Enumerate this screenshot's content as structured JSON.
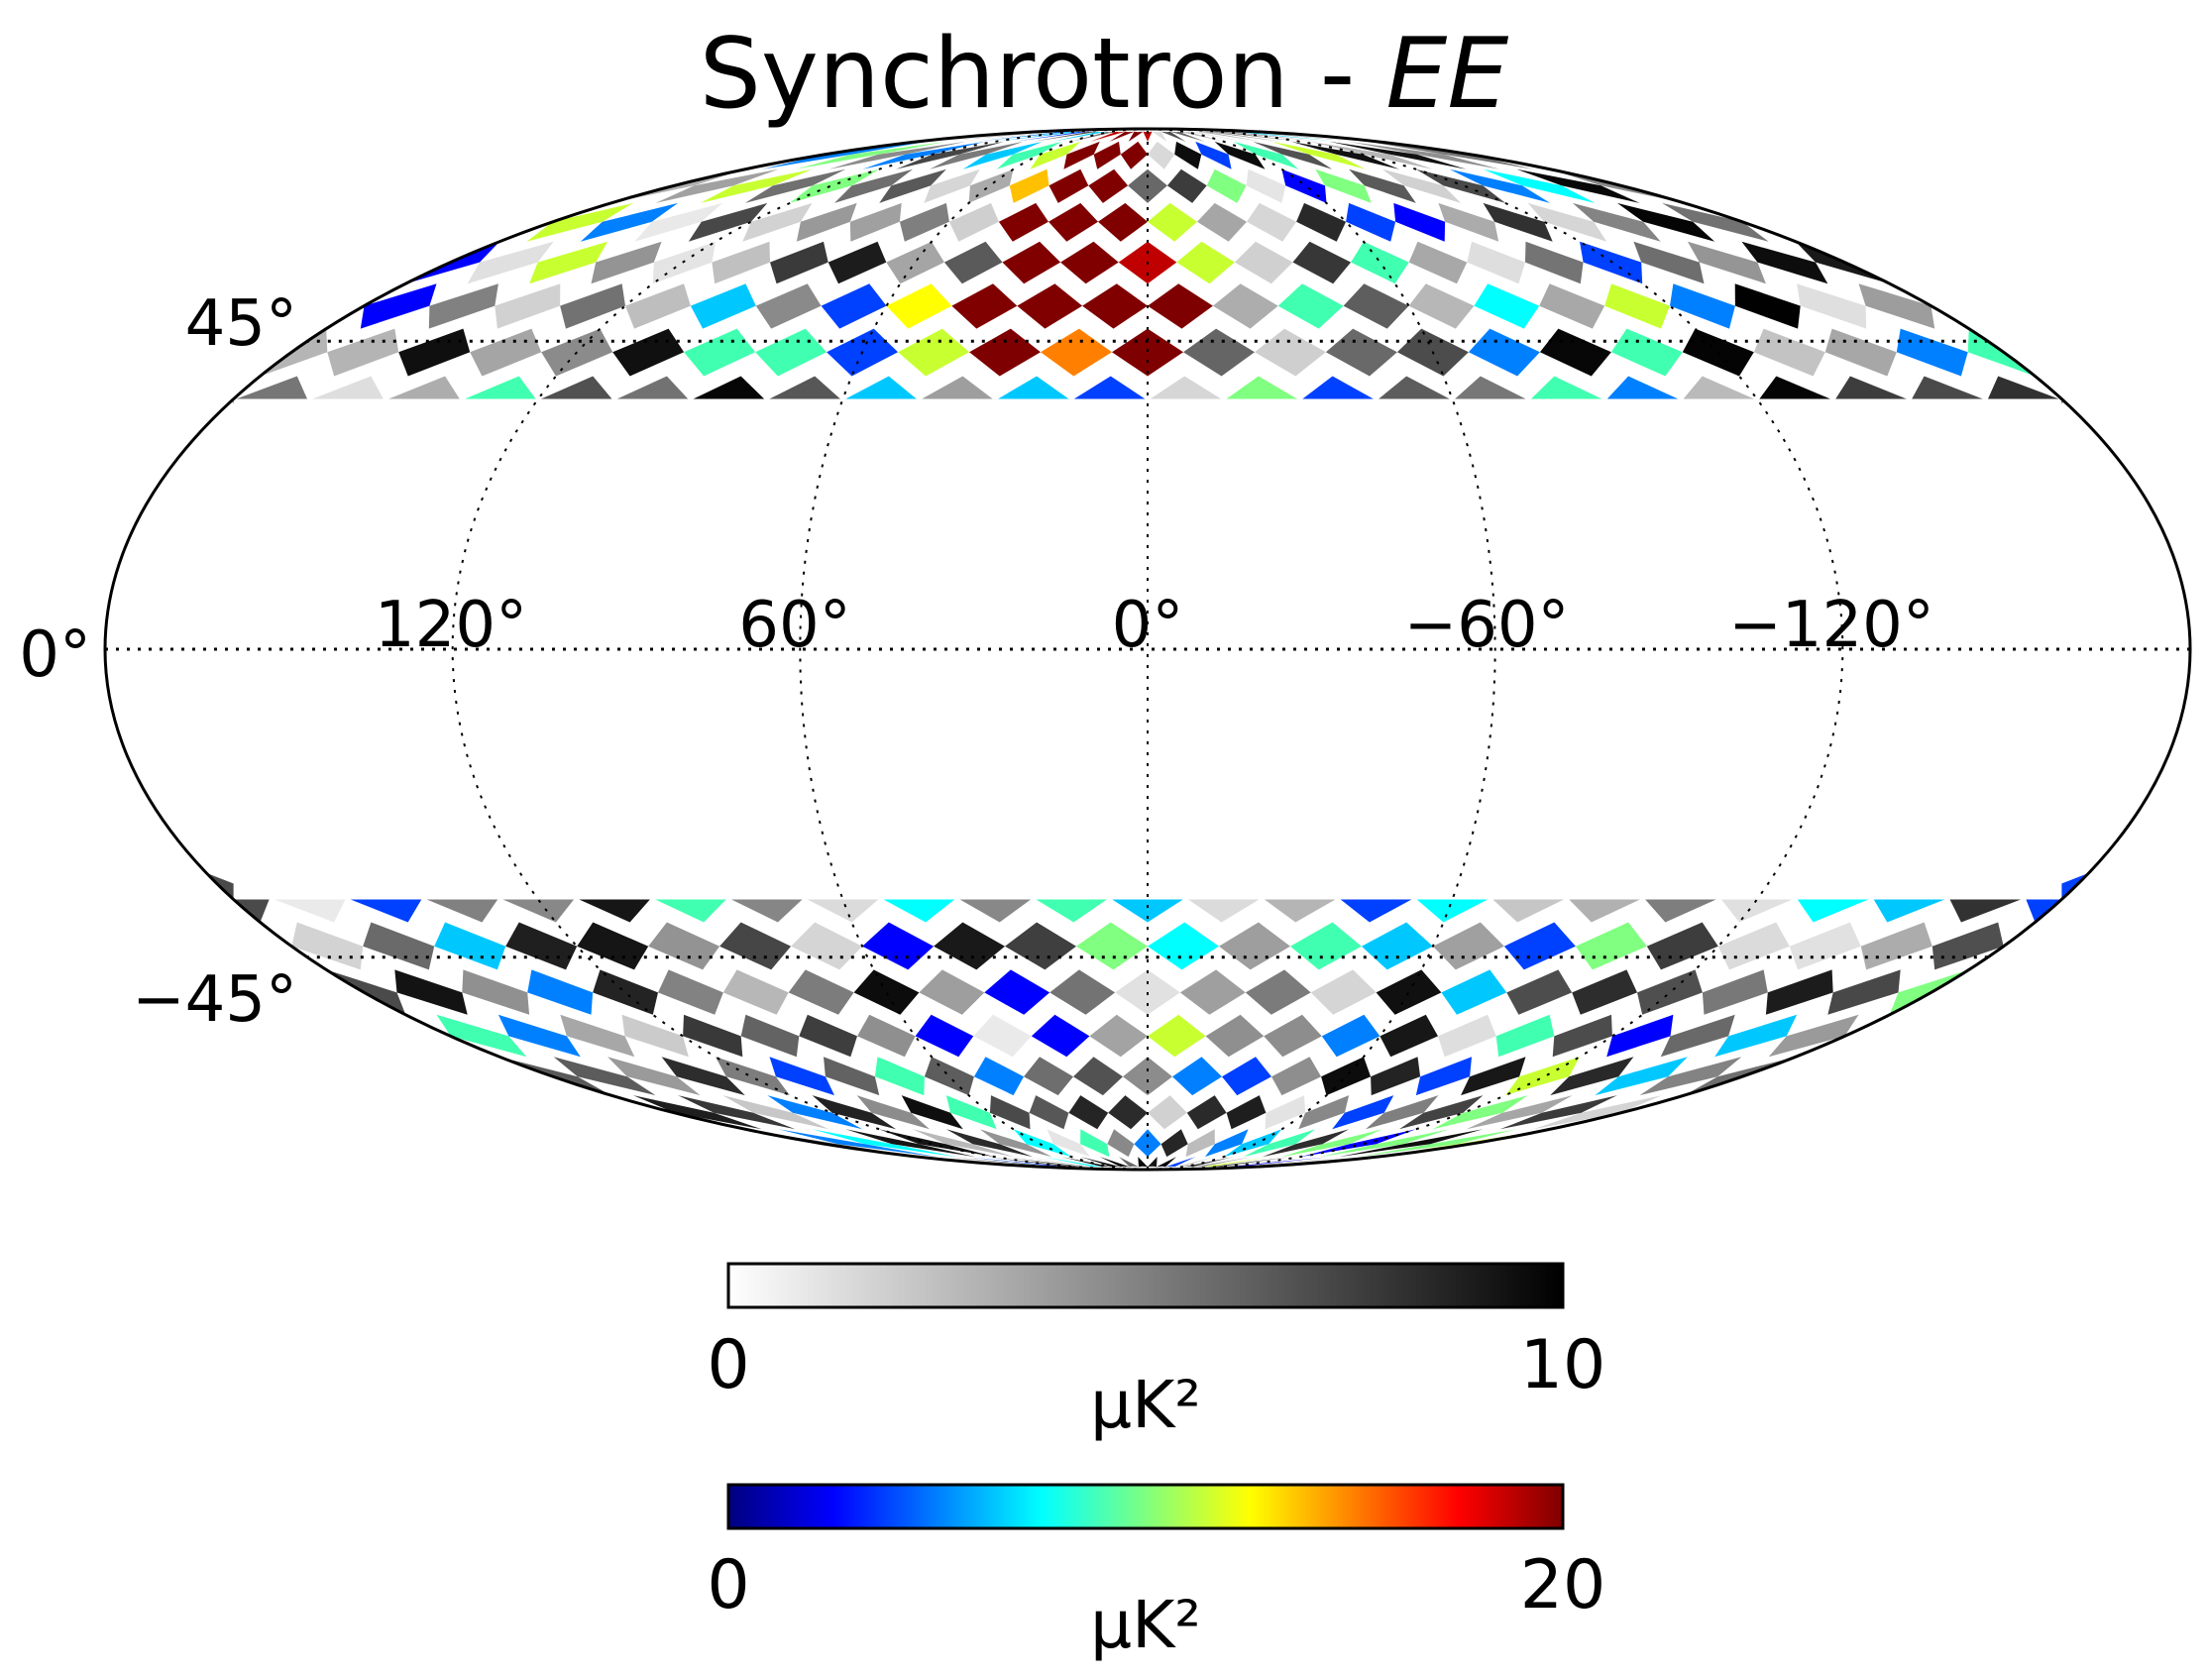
{
  "map": {
    "title_main": "Synchrotron - ",
    "title_em": "EE",
    "projection": "mollweide",
    "graticule_style": "dotted",
    "longitude_labels": [
      "120°",
      "60°",
      "0°",
      "−60°",
      "−120°"
    ],
    "latitude_labels": [
      "45°",
      "0°",
      "−45°"
    ]
  },
  "colorbars": [
    {
      "colormap": "gray-reversed",
      "min_label": "0",
      "max_label": "10",
      "unit": "μK²",
      "stops": [
        "#ffffff",
        "#000000"
      ]
    },
    {
      "colormap": "jet",
      "min_label": "0",
      "max_label": "20",
      "unit": "μK²",
      "stops": [
        "#00007f",
        "#0000ff",
        "#007fff",
        "#00ffff",
        "#7fff7f",
        "#ffff00",
        "#ff7f00",
        "#ff0000",
        "#7f0000"
      ]
    }
  ]
}
